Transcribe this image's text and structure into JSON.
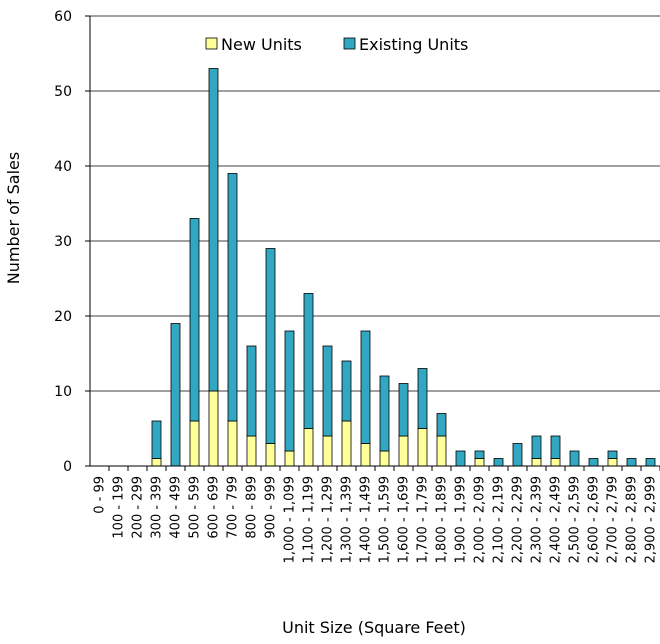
{
  "chart_data": {
    "type": "bar",
    "stacked": true,
    "title": "",
    "xlabel": "Unit Size (Square Feet)",
    "ylabel": "Number of Sales",
    "ylim": [
      0,
      60
    ],
    "yticks": [
      0,
      10,
      20,
      30,
      40,
      50,
      60
    ],
    "grid": true,
    "legend_position": "top-right",
    "categories": [
      "0 - 99",
      "100 - 199",
      "200 - 299",
      "300 - 399",
      "400 - 499",
      "500 - 599",
      "600 - 699",
      "700 - 799",
      "800 - 899",
      "900 - 999",
      "1,000 - 1,099",
      "1,100 - 1,199",
      "1,200 - 1,299",
      "1,300 - 1,399",
      "1,400 - 1,499",
      "1,500 - 1,599",
      "1,600 - 1,699",
      "1,700 - 1,799",
      "1,800 - 1,899",
      "1,900 - 1,999",
      "2,000 - 2,099",
      "2,100 - 2,199",
      "2,200 - 2,299",
      "2,300 - 2,399",
      "2,400 - 2,499",
      "2,500 - 2,599",
      "2,600 - 2,699",
      "2,700 - 2,799",
      "2,800 - 2,899",
      "2,900 - 2,999"
    ],
    "series": [
      {
        "name": "New Units",
        "color": "#ffff99",
        "values": [
          0,
          0,
          0,
          1,
          0,
          6,
          10,
          6,
          4,
          3,
          2,
          5,
          4,
          6,
          3,
          2,
          4,
          5,
          4,
          0,
          1,
          0,
          0,
          1,
          1,
          0,
          0,
          1,
          0,
          0
        ]
      },
      {
        "name": "Existing Units",
        "color": "#31a7c1",
        "values": [
          0,
          0,
          0,
          5,
          19,
          27,
          43,
          33,
          12,
          26,
          16,
          18,
          12,
          8,
          15,
          10,
          7,
          8,
          3,
          2,
          1,
          1,
          3,
          3,
          3,
          2,
          1,
          1,
          1,
          1
        ]
      }
    ]
  }
}
